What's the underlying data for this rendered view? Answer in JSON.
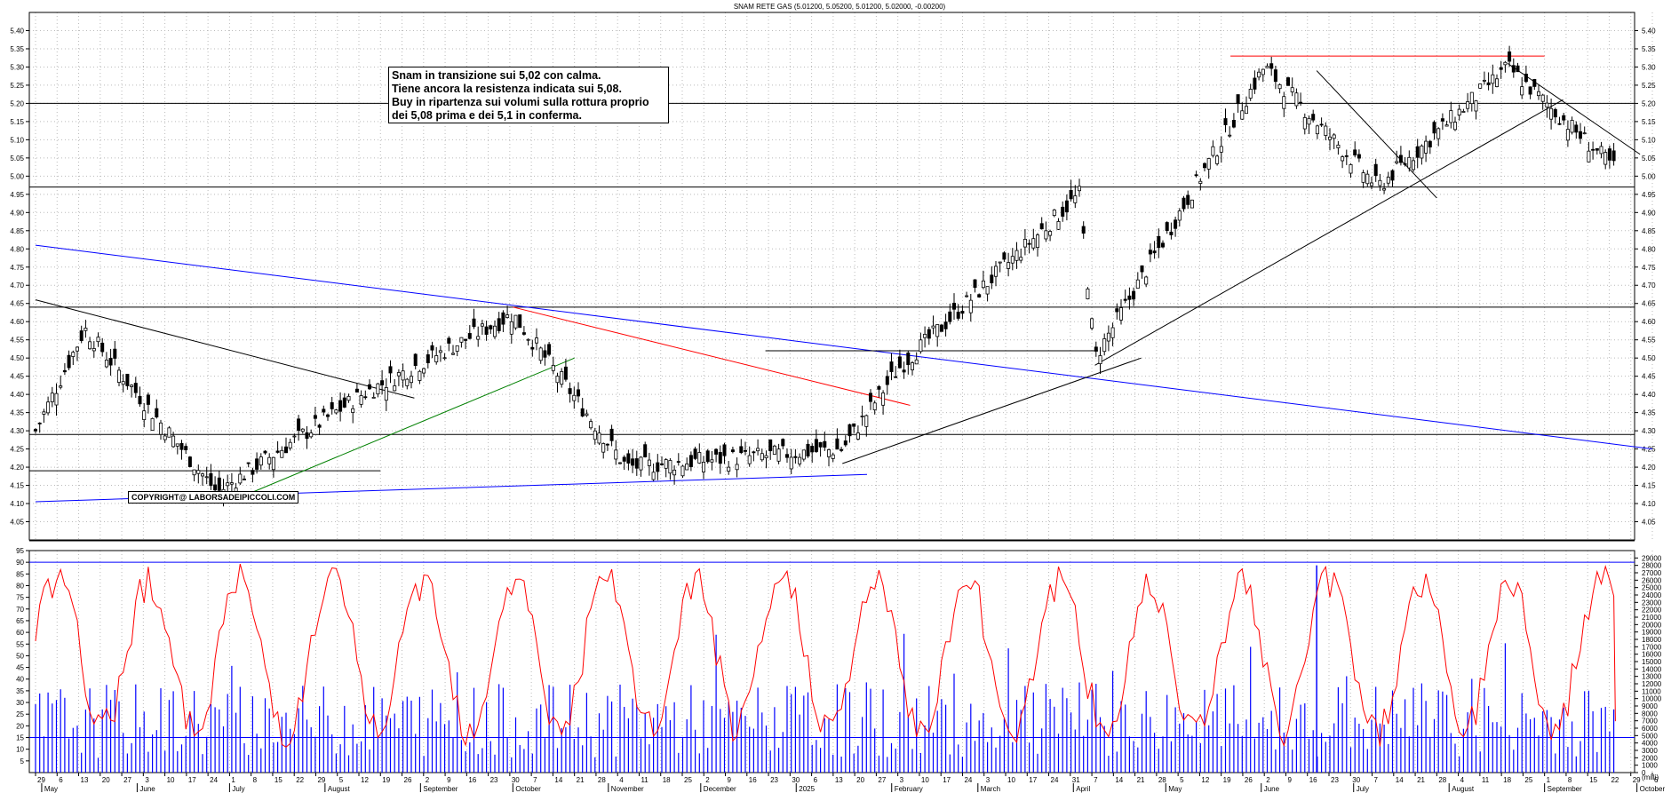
{
  "title": "SNAM RETE GAS (5.01200, 5.05200, 5.01200, 5.02000, -0.00200)",
  "note_lines": [
    "Snam in transizione sui 5,02 con calma.",
    "Tiene ancora la resistenza indicata sui 5,08.",
    "Buy in ripartenza sui volumi sulla rottura proprio",
    "dei 5,08 prima e dei 5,1 in conferma."
  ],
  "copyright": "COPYRIGHT@ LABORSADEIPICCOLI.COM",
  "colors": {
    "candle": "#000000",
    "trend_blue": "#0000ff",
    "trend_red": "#ff0000",
    "trend_green": "#008000",
    "oscillator": "#ff0000",
    "volume": "#0000ff"
  },
  "chart_data": [
    {
      "type": "candlestick",
      "title": "SNAM RETE GAS (5.01200, 5.05200, 5.01200, 5.02000, -0.00200)",
      "ylim": [
        4.0,
        5.45
      ],
      "y_ticks": [
        "4.05",
        "4.10",
        "4.15",
        "4.20",
        "4.25",
        "4.30",
        "4.35",
        "4.40",
        "4.45",
        "4.50",
        "4.55",
        "4.60",
        "4.65",
        "4.70",
        "4.75",
        "4.80",
        "4.85",
        "4.90",
        "4.95",
        "5.00",
        "5.05",
        "5.10",
        "5.15",
        "5.20",
        "5.25",
        "5.30",
        "5.35",
        "5.40"
      ],
      "grid": true,
      "horizontal_levels": [
        5.33,
        5.2,
        4.97,
        4.64,
        4.29,
        4.19
      ],
      "key_points": [
        {
          "date": "2024-04-29",
          "close": 4.3
        },
        {
          "date": "2024-05-15",
          "close": 4.58
        },
        {
          "date": "2024-06-27",
          "close": 4.13
        },
        {
          "date": "2024-08-13",
          "close": 4.4
        },
        {
          "date": "2024-10-01",
          "close": 4.62
        },
        {
          "date": "2024-11-07",
          "close": 4.2
        },
        {
          "date": "2025-01-16",
          "close": 4.25
        },
        {
          "date": "2025-02-03",
          "close": 4.47
        },
        {
          "date": "2025-04-03",
          "close": 4.95
        },
        {
          "date": "2025-04-08",
          "close": 4.5
        },
        {
          "date": "2025-06-02",
          "close": 5.3
        },
        {
          "date": "2025-07-09",
          "close": 4.97
        },
        {
          "date": "2025-08-20",
          "close": 5.3
        },
        {
          "date": "2025-09-24",
          "close": 5.02
        }
      ]
    },
    {
      "type": "line+bar",
      "ylim": [
        0,
        95
      ],
      "left_ticks": [
        "5",
        "10",
        "15",
        "20",
        "25",
        "30",
        "35",
        "40",
        "45",
        "50",
        "55",
        "60",
        "65",
        "70",
        "75",
        "80",
        "85",
        "90",
        "95"
      ],
      "right_ticks": [
        "0",
        "1000",
        "2000",
        "3000",
        "4000",
        "5000",
        "6000",
        "7000",
        "8000",
        "9000",
        "10000",
        "11000",
        "12000",
        "13000",
        "14000",
        "15000",
        "16000",
        "17000",
        "18000",
        "19000",
        "20000",
        "21000",
        "22000",
        "23000",
        "24000",
        "25000",
        "26000",
        "27000",
        "28000",
        "29000"
      ],
      "right_unit": "(milli)",
      "levels": [
        90,
        15
      ],
      "series": [
        {
          "role": "oscillator",
          "min": 8,
          "max": 90,
          "last": 22
        },
        {
          "role": "volume",
          "typical": [
            2000,
            12000
          ],
          "max": 28000
        }
      ]
    }
  ],
  "x_axis": {
    "day_ticks": [
      "29",
      "6",
      "13",
      "20",
      "27",
      "3",
      "10",
      "17",
      "24",
      "1",
      "8",
      "15",
      "22",
      "29",
      "5",
      "12",
      "19",
      "26",
      "2",
      "9",
      "16",
      "23",
      "30",
      "7",
      "14",
      "21",
      "28",
      "4",
      "11",
      "18",
      "25",
      "2",
      "9",
      "16",
      "23",
      "30",
      "6",
      "13",
      "20",
      "27",
      "3",
      "10",
      "17",
      "24",
      "3",
      "10",
      "17",
      "24",
      "31",
      "7",
      "14",
      "21",
      "28",
      "5",
      "12",
      "19",
      "26",
      "2",
      "9",
      "16",
      "23",
      "30",
      "7",
      "14",
      "21",
      "28",
      "4",
      "11",
      "18",
      "25",
      "1",
      "8",
      "15",
      "22",
      "29",
      "6"
    ],
    "month_labels": [
      "May",
      "June",
      "July",
      "August",
      "September",
      "October",
      "November",
      "December",
      "2025",
      "February",
      "March",
      "April",
      "May",
      "June",
      "July",
      "August",
      "September",
      "October"
    ]
  }
}
